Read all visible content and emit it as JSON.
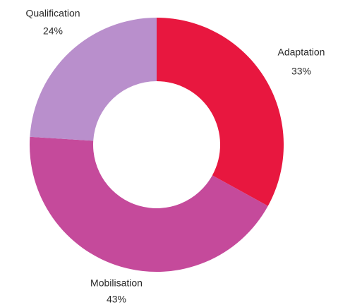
{
  "chart_data": {
    "type": "pie",
    "categories": [
      "Adaptation",
      "Mobilisation",
      "Qualification"
    ],
    "values": [
      33,
      43,
      24
    ],
    "value_labels": [
      "33%",
      "43%",
      "24%"
    ],
    "colors": [
      "#e8173f",
      "#c54a9b",
      "#b98fcc"
    ]
  }
}
